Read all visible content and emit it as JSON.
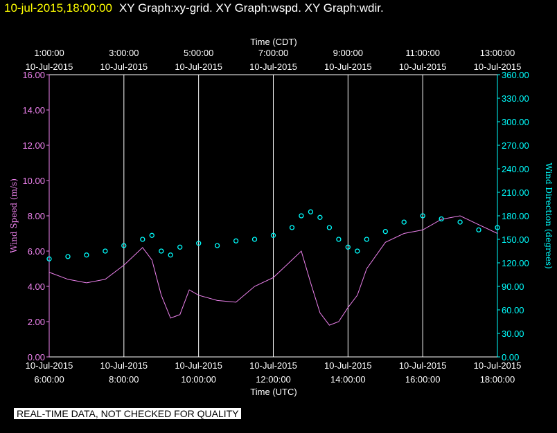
{
  "header": {
    "timestamp": "10-jul-2015,18:00:00",
    "graphs": "XY Graph:xy-grid.  XY Graph:wspd.  XY Graph:wdir."
  },
  "footer": {
    "qc_notice": "REAL-TIME DATA, NOT CHECKED FOR QUALITY"
  },
  "colors": {
    "speed": "#ee82ee",
    "direction": "#00ffff",
    "grid": "#ffffff",
    "timestamp": "#ffff00"
  },
  "chart_data": {
    "type": "line",
    "x_top_title": "Time (CDT)",
    "x_bottom_title": "Time (UTC)",
    "x_top_ticks": [
      {
        "time": "1:00:00",
        "date": "10-Jul-2015"
      },
      {
        "time": "3:00:00",
        "date": "10-Jul-2015"
      },
      {
        "time": "5:00:00",
        "date": "10-Jul-2015"
      },
      {
        "time": "7:00:00",
        "date": "10-Jul-2015"
      },
      {
        "time": "9:00:00",
        "date": "10-Jul-2015"
      },
      {
        "time": "11:00:00",
        "date": "10-Jul-2015"
      },
      {
        "time": "13:00:00",
        "date": "10-Jul-2015"
      }
    ],
    "x_bottom_ticks": [
      {
        "date": "10-Jul-2015",
        "time": "6:00:00"
      },
      {
        "date": "10-Jul-2015",
        "time": "8:00:00"
      },
      {
        "date": "10-Jul-2015",
        "time": "10:00:00"
      },
      {
        "date": "10-Jul-2015",
        "time": "12:00:00"
      },
      {
        "date": "10-Jul-2015",
        "time": "14:00:00"
      },
      {
        "date": "10-Jul-2015",
        "time": "16:00:00"
      },
      {
        "date": "10-Jul-2015",
        "time": "18:00:00"
      }
    ],
    "xlim_utc_hours": [
      6,
      18
    ],
    "grid": true,
    "y_left": {
      "title": "Wind Speed (m/s)",
      "range": [
        0,
        16
      ],
      "ticks": [
        "0.00",
        "2.00",
        "4.00",
        "6.00",
        "8.00",
        "10.00",
        "12.00",
        "14.00",
        "16.00"
      ]
    },
    "y_right": {
      "title": "Wind Direction (degrees)",
      "range": [
        0,
        360
      ],
      "ticks": [
        "0.00",
        "30.00",
        "60.00",
        "90.00",
        "120.00",
        "150.00",
        "180.00",
        "210.00",
        "240.00",
        "270.00",
        "300.00",
        "330.00",
        "360.00"
      ]
    },
    "series": [
      {
        "name": "Wind Speed",
        "axis": "left",
        "style": "line",
        "color": "#ee82ee",
        "x": [
          6.0,
          6.5,
          7.0,
          7.5,
          8.0,
          8.5,
          8.75,
          9.0,
          9.25,
          9.5,
          9.75,
          10.0,
          10.5,
          11.0,
          11.5,
          12.0,
          12.5,
          12.75,
          13.0,
          13.25,
          13.5,
          13.75,
          14.0,
          14.25,
          14.5,
          15.0,
          15.5,
          16.0,
          16.5,
          17.0,
          17.5,
          18.0
        ],
        "y": [
          4.8,
          4.4,
          4.2,
          4.4,
          5.2,
          6.2,
          5.5,
          3.5,
          2.2,
          2.4,
          3.8,
          3.5,
          3.2,
          3.1,
          4.0,
          4.5,
          5.5,
          6.0,
          4.2,
          2.5,
          1.8,
          2.0,
          2.8,
          3.5,
          5.0,
          6.5,
          7.0,
          7.2,
          7.8,
          8.0,
          7.5,
          7.0
        ]
      },
      {
        "name": "Wind Direction",
        "axis": "right",
        "style": "markers",
        "color": "#00ffff",
        "x": [
          6.0,
          6.5,
          7.0,
          7.5,
          8.0,
          8.5,
          8.75,
          9.0,
          9.25,
          9.5,
          10.0,
          10.5,
          11.0,
          11.5,
          12.0,
          12.5,
          12.75,
          13.0,
          13.25,
          13.5,
          13.75,
          14.0,
          14.25,
          14.5,
          15.0,
          15.5,
          16.0,
          16.5,
          17.0,
          17.5,
          18.0
        ],
        "y": [
          125,
          128,
          130,
          135,
          142,
          150,
          155,
          135,
          130,
          140,
          145,
          142,
          148,
          150,
          155,
          165,
          180,
          185,
          178,
          165,
          150,
          140,
          135,
          150,
          160,
          172,
          180,
          176,
          172,
          162,
          165
        ]
      }
    ]
  }
}
